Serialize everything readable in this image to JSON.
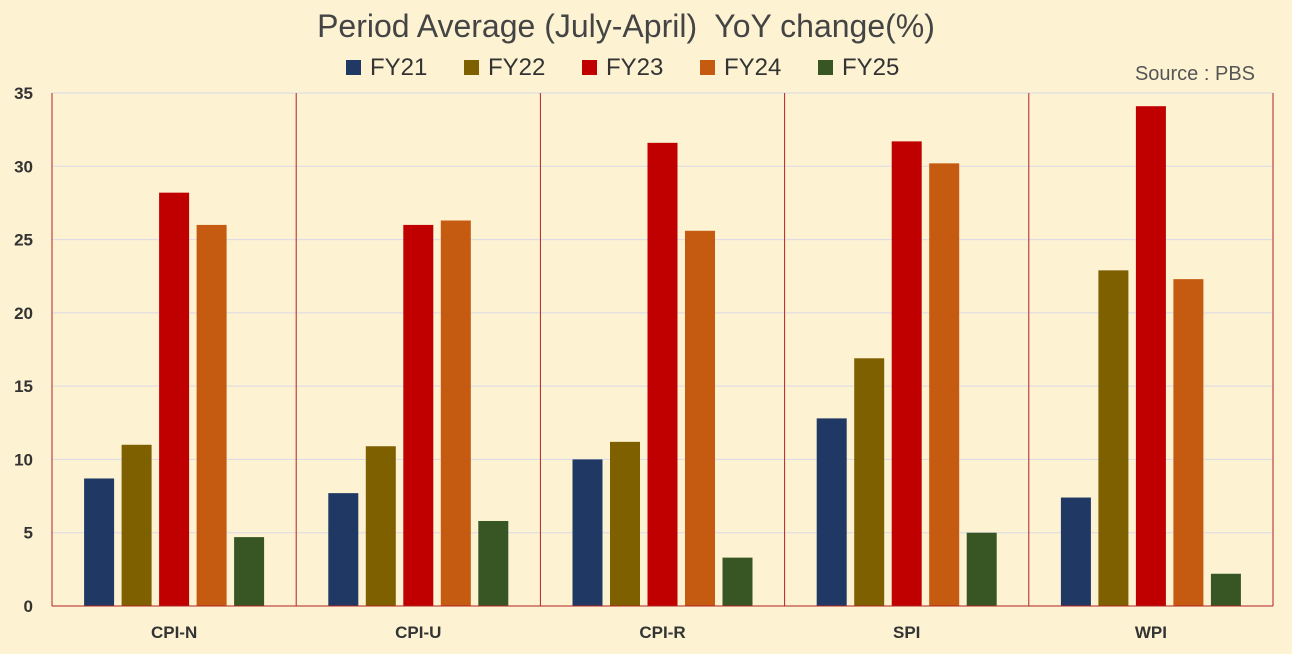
{
  "chart_data": {
    "type": "bar",
    "title": "Period Average (July-April)  YoY change(%)",
    "source": "Source : PBS",
    "categories": [
      "CPI-N",
      "CPI-U",
      "CPI-R",
      "SPI",
      "WPI"
    ],
    "ylim": [
      0,
      35
    ],
    "yticks": [
      0,
      5,
      10,
      15,
      20,
      25,
      30,
      35
    ],
    "grid": true,
    "legend_position": "top",
    "series": [
      {
        "name": "FY21",
        "color": "#1f3864",
        "values": [
          8.7,
          7.7,
          10.0,
          12.8,
          7.4
        ]
      },
      {
        "name": "FY22",
        "color": "#7f6000",
        "values": [
          11.0,
          10.9,
          11.2,
          16.9,
          22.9
        ]
      },
      {
        "name": "FY23",
        "color": "#c00000",
        "values": [
          28.2,
          26.0,
          31.6,
          31.7,
          34.1
        ]
      },
      {
        "name": "FY24",
        "color": "#c55a11",
        "values": [
          26.0,
          26.3,
          25.6,
          30.2,
          22.3
        ]
      },
      {
        "name": "FY25",
        "color": "#375623",
        "values": [
          4.7,
          5.8,
          3.3,
          5.0,
          2.2
        ]
      }
    ]
  },
  "colors": {
    "background": "#fdf3d3",
    "gridline": "#d9d9e6",
    "separator": "#b22222"
  }
}
